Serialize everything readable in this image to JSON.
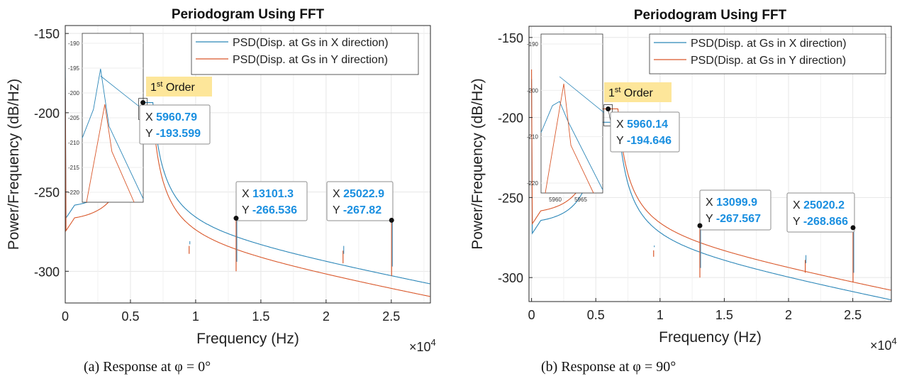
{
  "colors": {
    "series_x": "#2b86b8",
    "series_y": "#d9582b",
    "datatip_value": "#1a8fe0",
    "label_box": "#fde69a",
    "grid": "#e6e6e6",
    "axis": "#262626"
  },
  "chart_data": [
    {
      "type": "line",
      "title": "Periodogram Using FFT",
      "xlabel": "Frequency (Hz)",
      "ylabel": "Power/Frequency (dB/Hz)",
      "x_exponent": "×10",
      "x_exponent_power": "4",
      "xlim": [
        0,
        28000
      ],
      "ylim": [
        -320,
        -145
      ],
      "xticks": [
        0,
        5000,
        10000,
        15000,
        20000,
        25000
      ],
      "xtick_labels": [
        "0",
        "0.5",
        "1",
        "1.5",
        "2",
        "2.5"
      ],
      "yticks": [
        -150,
        -200,
        -250,
        -300
      ],
      "ytick_labels": [
        "-150",
        "-200",
        "-250",
        "-300"
      ],
      "grid": true,
      "legend_position": "top-right",
      "series": [
        {
          "name": "PSD(Disp. at Gs in X direction)",
          "baseline_offset": 0,
          "peak": [
            5960.79,
            -193.6
          ]
        },
        {
          "name": "PSD(Disp. at Gs in Y direction)",
          "baseline_offset": -8,
          "peak": [
            5960.79,
            -199
          ]
        }
      ],
      "spikes": [
        {
          "x": 13101.3,
          "y": -266.5,
          "depth": -300
        },
        {
          "x": 25022.9,
          "y": -267.8,
          "depth": -303
        },
        {
          "x": 21300,
          "y": -287,
          "depth": -295
        },
        {
          "x": 9500,
          "y": -284,
          "depth": -289
        }
      ],
      "annotation": {
        "text": "1",
        "sup": "st",
        "rest": " Order"
      },
      "datatips": [
        {
          "x_label": "X",
          "x_value": "5960.79",
          "y_label": "Y",
          "y_value": "-193.599",
          "px": 5960.79,
          "py": -193.599
        },
        {
          "x_label": "X",
          "x_value": "13101.3",
          "y_label": "Y",
          "y_value": "-266.536",
          "px": 13101.3,
          "py": -266.536
        },
        {
          "x_label": "X",
          "x_value": "25022.9",
          "y_label": "Y",
          "y_value": "-267.82",
          "px": 25022.9,
          "py": -267.82
        }
      ],
      "inset": {
        "yticks": [
          -190,
          -195,
          -200,
          -205,
          -210,
          -215,
          -220
        ],
        "ytick_labels": [
          "-190",
          "-195",
          "-200",
          "-205",
          "-210",
          "-215",
          "-220"
        ],
        "xtick_labels": []
      },
      "caption": "(a) Response at φ = 0°"
    },
    {
      "type": "line",
      "title": "Periodogram Using FFT",
      "xlabel": "Frequency (Hz)",
      "ylabel": "Power/Frequency (dB/Hz)",
      "x_exponent": "×10",
      "x_exponent_power": "4",
      "xlim": [
        -200,
        28000
      ],
      "ylim": [
        -315,
        -143
      ],
      "xticks": [
        0,
        5000,
        10000,
        15000,
        20000,
        25000
      ],
      "xtick_labels": [
        "0",
        "0.5",
        "1",
        "1.5",
        "2",
        "2.5"
      ],
      "yticks": [
        -150,
        -200,
        -250,
        -300
      ],
      "ytick_labels": [
        "-150",
        "-200",
        "-250",
        "-300"
      ],
      "grid": true,
      "legend_position": "top-right",
      "series": [
        {
          "name": "PSD(Disp. at Gs in X direction)",
          "baseline_offset": -6,
          "peak": [
            5960.14,
            -203
          ]
        },
        {
          "name": "PSD(Disp. at Gs in Y direction)",
          "baseline_offset": 0,
          "peak": [
            5960.14,
            -194.6
          ]
        }
      ],
      "spikes": [
        {
          "x": 13099.9,
          "y": -267.6,
          "depth": -300
        },
        {
          "x": 25020.2,
          "y": -268.9,
          "depth": -303
        },
        {
          "x": 21300,
          "y": -289,
          "depth": -297
        },
        {
          "x": 9500,
          "y": -283,
          "depth": -287
        }
      ],
      "annotation": {
        "text": "1",
        "sup": "st",
        "rest": " Order"
      },
      "datatips": [
        {
          "x_label": "X",
          "x_value": "5960.14",
          "y_label": "Y",
          "y_value": "-194.646",
          "px": 5960.14,
          "py": -194.646
        },
        {
          "x_label": "X",
          "x_value": "13099.9",
          "y_label": "Y",
          "y_value": "-267.567",
          "px": 13099.9,
          "py": -267.567
        },
        {
          "x_label": "X",
          "x_value": "25020.2",
          "y_label": "Y",
          "y_value": "-268.866",
          "px": 25020.2,
          "py": -268.866
        }
      ],
      "inset": {
        "yticks": [
          -190,
          -200,
          -210,
          -220
        ],
        "ytick_labels": [
          "-190",
          "-200",
          "-210",
          "-220"
        ],
        "xtick_labels": [
          "5960",
          "5965"
        ]
      },
      "caption": "(b) Response at φ = 90°"
    }
  ]
}
